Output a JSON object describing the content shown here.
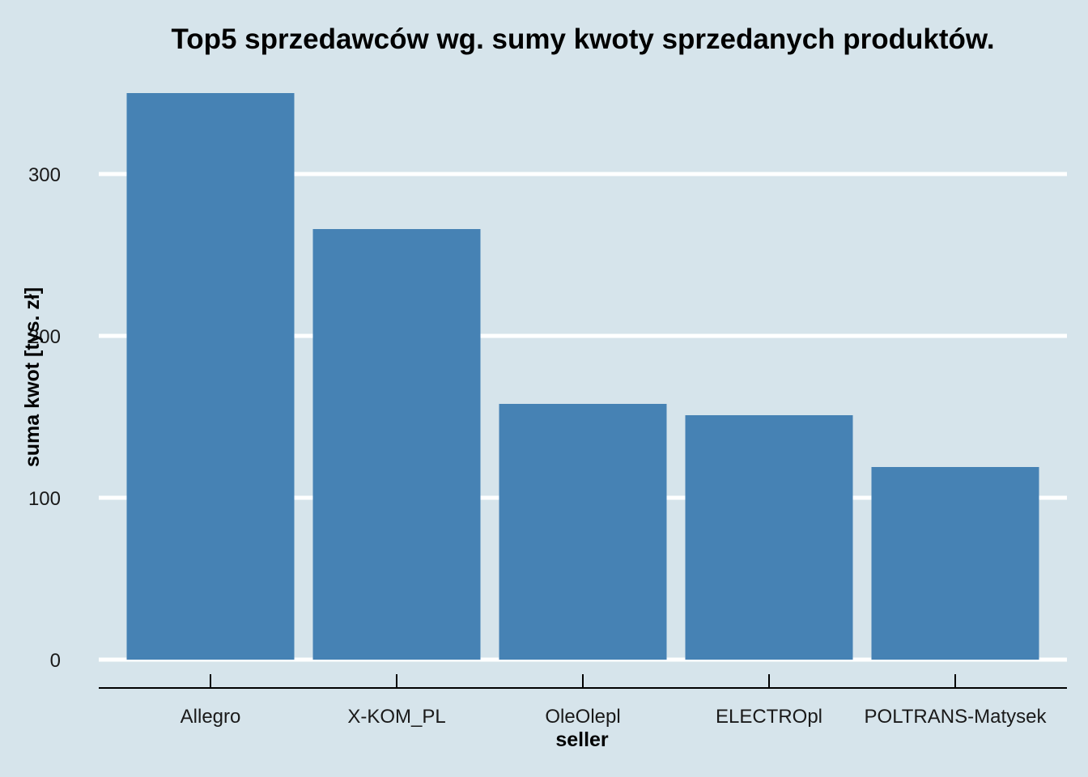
{
  "colors": {
    "background": "#d6e4eb",
    "bar": "#4682b4",
    "grid": "#ffffff",
    "axis": "#000000"
  },
  "chart_data": {
    "type": "bar",
    "title": "Top5 sprzedawców wg. sumy kwoty sprzedanych produktów.",
    "xlabel": "seller",
    "ylabel": "suma kwot [tys. zł]",
    "categories": [
      "Allegro",
      "X-KOM_PL",
      "OleOlepl",
      "ELECTROpl",
      "POLTRANS-Matysek"
    ],
    "values": [
      350,
      266,
      158,
      151,
      119
    ],
    "ylim": [
      0,
      350
    ],
    "yticks": [
      0,
      100,
      200,
      300
    ],
    "grid": true,
    "grid_axis": "y",
    "legend": "none"
  }
}
